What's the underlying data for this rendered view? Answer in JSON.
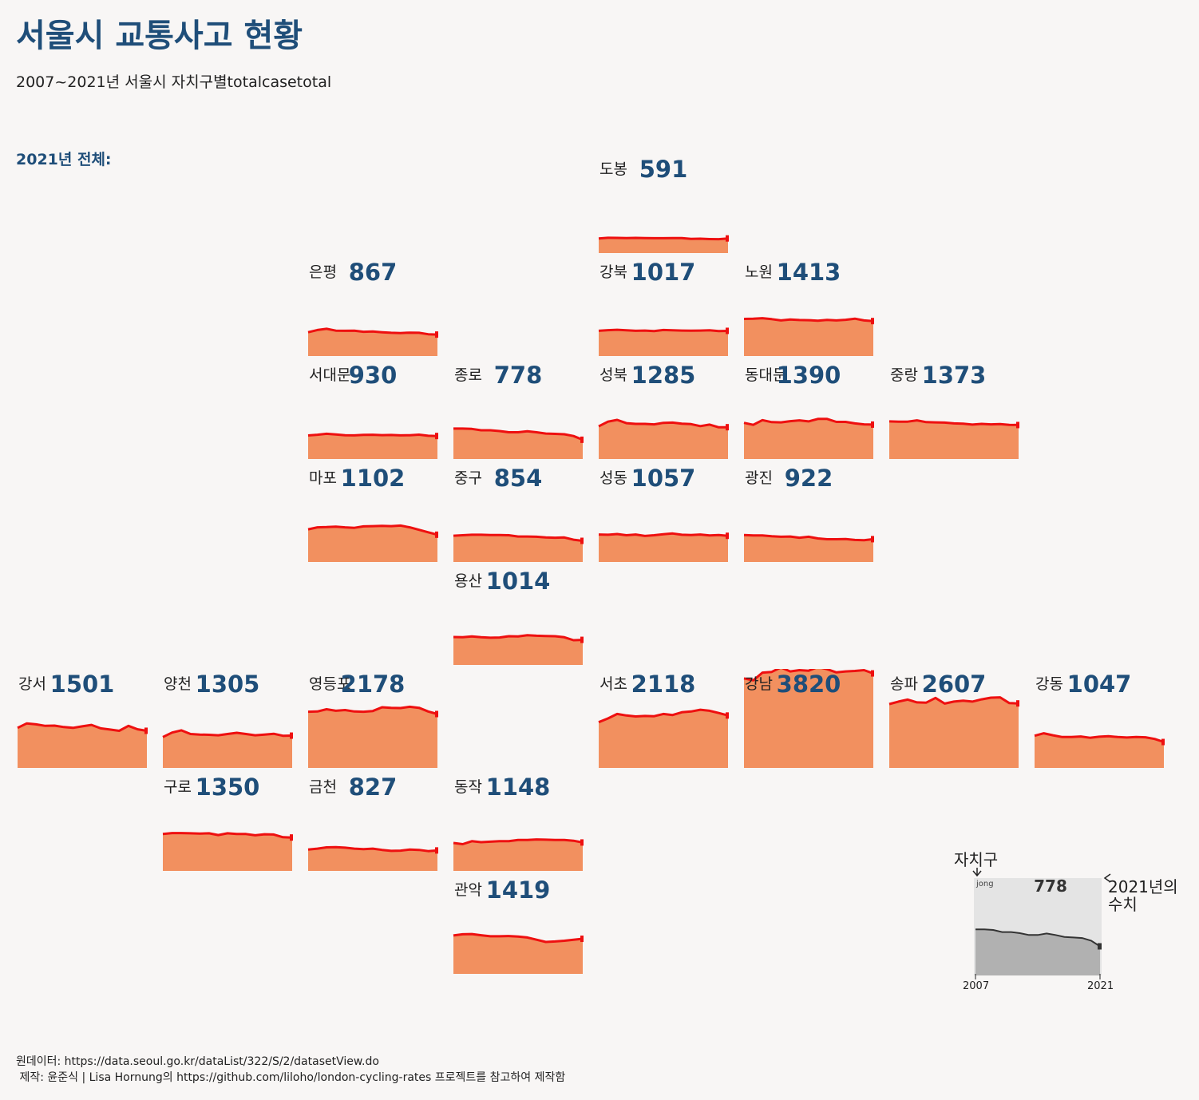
{
  "title": "서울시 교통사고 현황",
  "subtitle": "2007~2021년 서울시 자치구별totalcasetotal",
  "year_label": "2021년 전체:",
  "source_lines": [
    "원데이터: https://data.seoul.go.kr/dataList/322/S/2/datasetView.do",
    " 제작: 윤준식 | Lisa Hornung의 https://github.com/liloho/london-cycling-rates 프로젝트를 참고하여 제작함"
  ],
  "colors": {
    "title": "#1f4e79",
    "area": "#f2905f",
    "line": "#ee1010",
    "legend_area": "#b1b1b1",
    "legend_line": "#333333",
    "legend_bg": "#e4e4e4"
  },
  "chart_data": {
    "type": "area",
    "x_range": [
      2007,
      2021
    ],
    "y_range": [
      0,
      4000
    ],
    "grid": false,
    "districts": [
      {
        "name": "도봉",
        "value": 591,
        "series": [
          590,
          617,
          612,
          608,
          613,
          602,
          600,
          600,
          603,
          602,
          575,
          580,
          565,
          560,
          591
        ]
      },
      {
        "name": "은평",
        "value": 867,
        "series": [
          960,
          1050,
          1100,
          1025,
          1020,
          1025,
          980,
          990,
          960,
          940,
          930,
          945,
          940,
          880,
          867
        ]
      },
      {
        "name": "강북",
        "value": 1017,
        "series": [
          1020,
          1045,
          1060,
          1040,
          1020,
          1030,
          1010,
          1050,
          1040,
          1030,
          1025,
          1030,
          1040,
          1010,
          1017
        ]
      },
      {
        "name": "노원",
        "value": 1413,
        "series": [
          1500,
          1505,
          1530,
          1490,
          1440,
          1475,
          1455,
          1450,
          1430,
          1460,
          1440,
          1465,
          1510,
          1440,
          1413
        ]
      },
      {
        "name": "서대문",
        "value": 930,
        "series": [
          950,
          980,
          1020,
          990,
          960,
          955,
          975,
          980,
          965,
          970,
          955,
          960,
          985,
          940,
          930
        ]
      },
      {
        "name": "종로",
        "value": 778,
        "series": [
          1230,
          1230,
          1215,
          1160,
          1160,
          1130,
          1080,
          1080,
          1120,
          1080,
          1030,
          1015,
          1000,
          930,
          778
        ]
      },
      {
        "name": "성북",
        "value": 1285,
        "series": [
          1320,
          1510,
          1580,
          1450,
          1420,
          1420,
          1400,
          1460,
          1470,
          1430,
          1410,
          1330,
          1390,
          1280,
          1285
        ]
      },
      {
        "name": "동대문",
        "value": 1390,
        "series": [
          1460,
          1380,
          1570,
          1490,
          1480,
          1530,
          1560,
          1520,
          1620,
          1620,
          1500,
          1500,
          1440,
          1400,
          1390
        ]
      },
      {
        "name": "중랑",
        "value": 1373,
        "series": [
          1520,
          1510,
          1510,
          1560,
          1490,
          1480,
          1470,
          1440,
          1430,
          1390,
          1420,
          1400,
          1410,
          1380,
          1373
        ]
      },
      {
        "name": "마포",
        "value": 1102,
        "series": [
          1320,
          1400,
          1410,
          1430,
          1400,
          1380,
          1440,
          1450,
          1460,
          1450,
          1470,
          1400,
          1300,
          1200,
          1102
        ]
      },
      {
        "name": "중구",
        "value": 854,
        "series": [
          1060,
          1080,
          1100,
          1100,
          1090,
          1090,
          1080,
          1030,
          1030,
          1020,
          990,
          980,
          990,
          900,
          854
        ]
      },
      {
        "name": "성동",
        "value": 1057,
        "series": [
          1110,
          1100,
          1130,
          1080,
          1110,
          1050,
          1080,
          1120,
          1150,
          1100,
          1090,
          1110,
          1070,
          1090,
          1057
        ]
      },
      {
        "name": "광진",
        "value": 922,
        "series": [
          1090,
          1070,
          1070,
          1040,
          1020,
          1030,
          980,
          1020,
          950,
          920,
          920,
          930,
          890,
          880,
          922
        ]
      },
      {
        "name": "용산",
        "value": 1014,
        "series": [
          1130,
          1120,
          1150,
          1120,
          1100,
          1110,
          1160,
          1150,
          1200,
          1180,
          1170,
          1160,
          1120,
          1000,
          1014
        ]
      },
      {
        "name": "강서",
        "value": 1501,
        "series": [
          1620,
          1800,
          1760,
          1700,
          1710,
          1650,
          1620,
          1680,
          1740,
          1600,
          1550,
          1500,
          1700,
          1560,
          1501
        ]
      },
      {
        "name": "양천",
        "value": 1305,
        "series": [
          1250,
          1430,
          1520,
          1370,
          1350,
          1340,
          1320,
          1370,
          1420,
          1370,
          1320,
          1350,
          1380,
          1300,
          1305
        ]
      },
      {
        "name": "영등포",
        "value": 2178,
        "series": [
          2270,
          2280,
          2370,
          2310,
          2340,
          2280,
          2270,
          2300,
          2450,
          2430,
          2420,
          2470,
          2430,
          2280,
          2178
        ]
      },
      {
        "name": "서초",
        "value": 2118,
        "series": [
          1850,
          2000,
          2180,
          2120,
          2080,
          2100,
          2090,
          2180,
          2140,
          2250,
          2280,
          2350,
          2310,
          2220,
          2118
        ]
      },
      {
        "name": "강남",
        "value": 3820,
        "series": [
          3620,
          3540,
          3850,
          3880,
          4060,
          3900,
          3950,
          3930,
          4080,
          3990,
          3860,
          3900,
          3920,
          3950,
          3820
        ]
      },
      {
        "name": "송파",
        "value": 2607,
        "series": [
          2580,
          2680,
          2760,
          2650,
          2640,
          2830,
          2600,
          2680,
          2720,
          2680,
          2770,
          2840,
          2850,
          2620,
          2607
        ]
      },
      {
        "name": "강동",
        "value": 1047,
        "series": [
          1300,
          1400,
          1320,
          1250,
          1250,
          1270,
          1220,
          1260,
          1280,
          1250,
          1230,
          1250,
          1240,
          1170,
          1047
        ]
      },
      {
        "name": "구로",
        "value": 1350,
        "series": [
          1490,
          1530,
          1530,
          1520,
          1510,
          1520,
          1450,
          1520,
          1490,
          1490,
          1440,
          1480,
          1470,
          1360,
          1350
        ]
      },
      {
        "name": "금천",
        "value": 827,
        "series": [
          860,
          900,
          950,
          960,
          940,
          900,
          880,
          900,
          850,
          810,
          820,
          860,
          850,
          800,
          827
        ]
      },
      {
        "name": "동작",
        "value": 1148,
        "series": [
          1130,
          1080,
          1200,
          1160,
          1180,
          1200,
          1200,
          1250,
          1250,
          1270,
          1260,
          1250,
          1250,
          1220,
          1148
        ]
      },
      {
        "name": "관악",
        "value": 1419,
        "series": [
          1550,
          1600,
          1610,
          1560,
          1520,
          1520,
          1530,
          1510,
          1470,
          1380,
          1290,
          1310,
          1340,
          1380,
          1419
        ]
      }
    ],
    "legend": {
      "name": "jong",
      "value": 778,
      "label_district": "자치구",
      "label_value": "2021년의\n수치",
      "x_start": "2007",
      "x_end": "2021",
      "series": [
        1230,
        1230,
        1215,
        1160,
        1160,
        1130,
        1080,
        1080,
        1120,
        1080,
        1030,
        1015,
        1000,
        930,
        778
      ]
    }
  }
}
